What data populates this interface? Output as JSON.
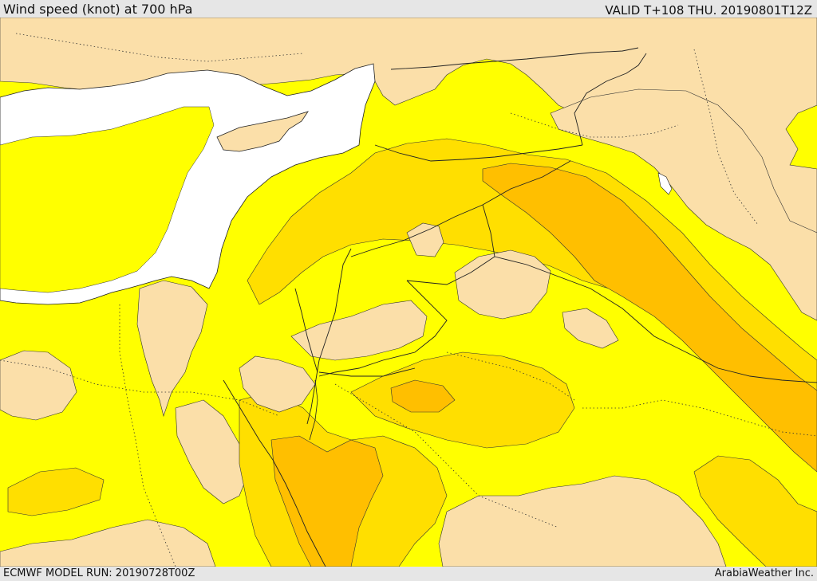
{
  "header": {
    "title": "Wind speed (knot) at 700 hPa",
    "valid": "VALID T+108 THU. 20190801T12Z"
  },
  "footer": {
    "model_run": "ECMWF MODEL RUN: 20190728T00Z",
    "credit": "ArabiaWeather Inc."
  },
  "colors": {
    "sea": "#ffffff",
    "band_0_10": "#fbdfa9",
    "band_10_20": "#ffff00",
    "band_20_25": "#ffdf00",
    "band_25_30": "#ffbf00",
    "coast": "#222222",
    "border": "#333333",
    "frame": "#e6e6e6"
  }
}
